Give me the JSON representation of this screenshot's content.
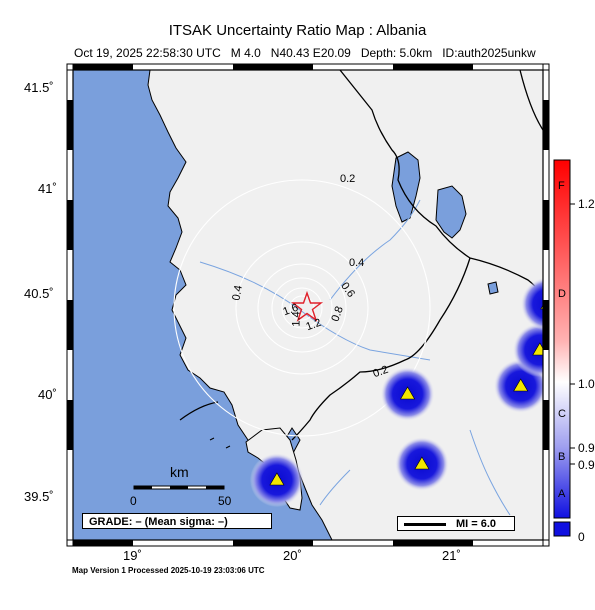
{
  "title": "ITSAK Uncertainty Ratio Map : Albania",
  "subtitle": {
    "datetime": "Oct 19, 2025 22:58:30 UTC",
    "magnitude": "M 4.0",
    "location": "N40.43 E20.09",
    "depth": "Depth: 5.0km",
    "id": "ID:auth2025unkw"
  },
  "footer": "Map Version 1 Processed 2025-10-19 23:03:06 UTC",
  "axes": {
    "lat_labels": [
      "41.5˚",
      "41˚",
      "40.5˚",
      "40˚",
      "39.5˚"
    ],
    "lon_labels": [
      "19˚",
      "20˚",
      "21˚"
    ]
  },
  "contours": [
    "0.2",
    "0.4",
    "0.4",
    "0.6",
    "0.8",
    "1.2",
    "1.6",
    "1.4",
    "0.2"
  ],
  "scale_bar": {
    "unit": "km",
    "min": "0",
    "max": "50"
  },
  "grade_box": "GRADE: – (Mean sigma: –)",
  "mi_legend": "MI = 6.0",
  "colorbar": {
    "ticks": [
      "1.2",
      "1.0",
      "0.9",
      "0.9",
      "0"
    ],
    "grades": [
      "F",
      "D",
      "C",
      "B",
      "A"
    ]
  },
  "colors": {
    "sea": "#7a9fdc",
    "land": "#f0f0f0",
    "epicenter": "#e0202a",
    "station": "#f2e600",
    "station_halo": "#1010d8"
  },
  "stations": [
    {
      "lon": 19.9,
      "lat": 39.62
    },
    {
      "lon": 20.72,
      "lat": 40.05
    },
    {
      "lon": 20.81,
      "lat": 39.7
    },
    {
      "lon": 21.43,
      "lat": 40.09
    },
    {
      "lon": 21.55,
      "lat": 40.27
    },
    {
      "lon": 21.6,
      "lat": 40.5
    }
  ],
  "epicenter": {
    "lon": 20.09,
    "lat": 40.43
  }
}
